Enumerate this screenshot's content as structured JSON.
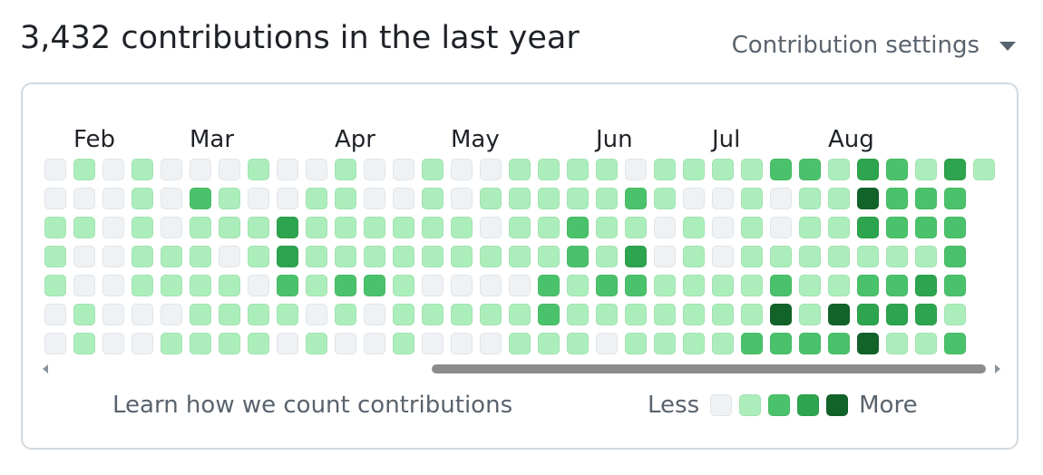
{
  "header": {
    "title": "3,432 contributions in the last year",
    "settings_label": "Contribution settings"
  },
  "calendar": {
    "months": [
      "Feb",
      "Mar",
      "Apr",
      "May",
      "Jun",
      "Jul",
      "Aug"
    ],
    "month_start_week": [
      1,
      5,
      10,
      14,
      19,
      23,
      27
    ],
    "level_colors": [
      "#eff2f5",
      "#aceebb",
      "#4ac26b",
      "#2da44e",
      "#116329"
    ],
    "weeks": [
      [
        0,
        0,
        1,
        1,
        1,
        0,
        0
      ],
      [
        1,
        0,
        1,
        0,
        0,
        1,
        1
      ],
      [
        0,
        0,
        0,
        0,
        0,
        0,
        0
      ],
      [
        1,
        1,
        1,
        1,
        1,
        0,
        0
      ],
      [
        0,
        0,
        0,
        1,
        1,
        0,
        1
      ],
      [
        0,
        2,
        1,
        1,
        1,
        1,
        1
      ],
      [
        0,
        1,
        1,
        0,
        1,
        1,
        1
      ],
      [
        1,
        0,
        1,
        1,
        0,
        1,
        1
      ],
      [
        0,
        0,
        3,
        3,
        2,
        1,
        0
      ],
      [
        0,
        1,
        1,
        1,
        1,
        0,
        1
      ],
      [
        1,
        1,
        1,
        1,
        2,
        1,
        0
      ],
      [
        0,
        0,
        1,
        1,
        2,
        0,
        0
      ],
      [
        0,
        0,
        1,
        1,
        1,
        1,
        1
      ],
      [
        1,
        1,
        1,
        1,
        0,
        1,
        0
      ],
      [
        0,
        0,
        1,
        1,
        0,
        1,
        0
      ],
      [
        0,
        1,
        0,
        1,
        0,
        1,
        0
      ],
      [
        1,
        1,
        1,
        1,
        0,
        1,
        1
      ],
      [
        1,
        1,
        1,
        1,
        2,
        2,
        1
      ],
      [
        1,
        1,
        2,
        2,
        1,
        1,
        1
      ],
      [
        1,
        1,
        1,
        1,
        2,
        1,
        0
      ],
      [
        0,
        2,
        1,
        3,
        2,
        1,
        1
      ],
      [
        1,
        1,
        0,
        0,
        1,
        1,
        1
      ],
      [
        1,
        0,
        1,
        1,
        1,
        1,
        1
      ],
      [
        1,
        0,
        0,
        0,
        1,
        1,
        1
      ],
      [
        1,
        1,
        1,
        1,
        1,
        1,
        2
      ],
      [
        2,
        0,
        0,
        1,
        2,
        4,
        2
      ],
      [
        2,
        1,
        1,
        1,
        1,
        1,
        2
      ],
      [
        1,
        1,
        1,
        1,
        1,
        4,
        2
      ],
      [
        3,
        4,
        3,
        1,
        2,
        3,
        4
      ],
      [
        2,
        2,
        2,
        1,
        2,
        3,
        1
      ],
      [
        1,
        2,
        2,
        1,
        3,
        3,
        1
      ],
      [
        3,
        2,
        2,
        2,
        2,
        1,
        2
      ],
      [
        1
      ]
    ]
  },
  "footer": {
    "learn_link": "Learn how we count contributions",
    "legend_less": "Less",
    "legend_more": "More"
  }
}
